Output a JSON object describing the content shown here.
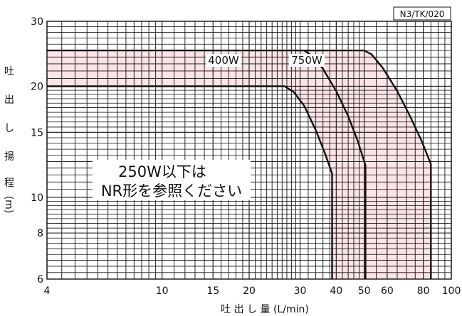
{
  "chart_data": {
    "type": "line",
    "chart_code": "N3/TK/020",
    "xlabel": "吐 出 し 量 (L/min)",
    "ylabel_chars": [
      "吐",
      "出",
      "し",
      "揚",
      "程",
      "(m)"
    ],
    "x_scale": "log",
    "y_scale": "log",
    "xlim": [
      4,
      100
    ],
    "ylim": [
      6,
      30
    ],
    "x_ticks": [
      4,
      10,
      15,
      20,
      30,
      40,
      50,
      60,
      80,
      100
    ],
    "y_ticks": [
      6,
      8,
      10,
      15,
      20,
      30
    ],
    "grid": true,
    "note_lines": [
      "250W以下は",
      "NR形を参照ください"
    ],
    "series": [
      {
        "name": "400W",
        "color": "#111111",
        "points": [
          [
            4,
            20
          ],
          [
            26.5,
            20
          ],
          [
            28.5,
            19.3
          ],
          [
            31,
            17.7
          ],
          [
            34,
            15.2
          ],
          [
            36.5,
            13.2
          ],
          [
            38.7,
            11.6
          ],
          [
            38.7,
            6
          ]
        ]
      },
      {
        "name": "750W",
        "color": "#111111",
        "points": [
          [
            4,
            25
          ],
          [
            31,
            25
          ],
          [
            33,
            24.2
          ],
          [
            36,
            22.3
          ],
          [
            40,
            19.4
          ],
          [
            44,
            16.6
          ],
          [
            47.5,
            14.2
          ],
          [
            50.5,
            12.2
          ],
          [
            50.5,
            6
          ]
        ]
      },
      {
        "name": "",
        "color": "#111111",
        "points": [
          [
            31,
            25
          ],
          [
            50,
            25
          ],
          [
            53,
            24.4
          ],
          [
            58,
            22.4
          ],
          [
            65,
            19.4
          ],
          [
            72,
            16.6
          ],
          [
            79,
            14.2
          ],
          [
            85,
            12.3
          ],
          [
            85,
            6
          ]
        ]
      }
    ],
    "shaded_color": "#fbe3e6"
  }
}
